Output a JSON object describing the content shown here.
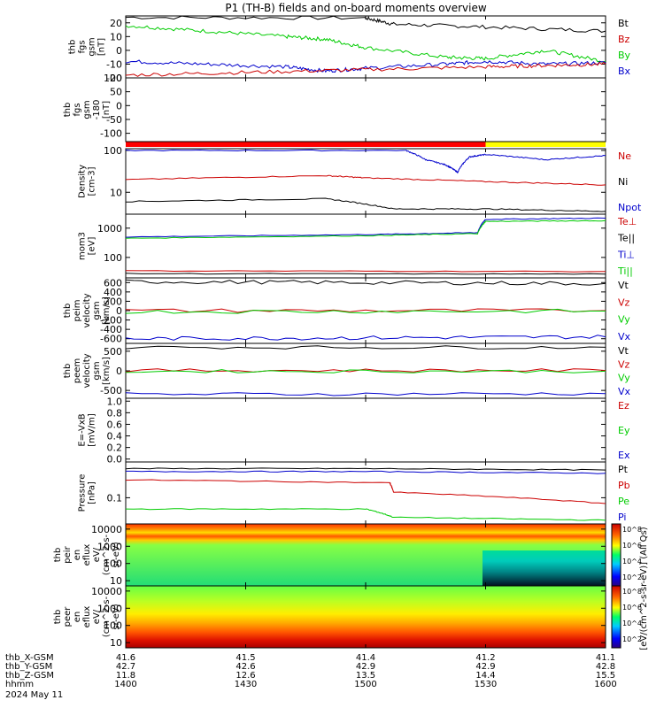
{
  "title": "P1 (TH-B) fields and on-board moments overview",
  "panels": [
    {
      "id": "fgs",
      "ylabel": [
        "thb",
        "fgs",
        "gsm",
        "[nT]"
      ],
      "ticks": [
        20,
        10,
        0,
        -10,
        -20
      ],
      "ylim": [
        -20,
        25
      ],
      "legend": [
        {
          "label": "Bt",
          "color": "#000000"
        },
        {
          "label": "Bz",
          "color": "#cc0000"
        },
        {
          "label": "By",
          "color": "#00cc00"
        },
        {
          "label": "Bx",
          "color": "#0000cc"
        }
      ]
    },
    {
      "id": "fgs_sun",
      "ylabel": [
        "thb",
        "fgs",
        "gsm",
        "-180",
        "[nT]"
      ],
      "ticks": [
        100,
        50,
        0,
        -50,
        -100
      ],
      "ylim": [
        -130,
        100
      ],
      "legend": []
    },
    {
      "id": "density",
      "ylabel": [
        "Density",
        "[cm-3]"
      ],
      "ticks": [
        "100",
        "10"
      ],
      "scale": "log",
      "ylim": [
        3,
        110
      ],
      "legend": [
        {
          "label": "Ne",
          "color": "#cc0000"
        },
        {
          "label": "Ni",
          "color": "#000000"
        },
        {
          "label": "Npot",
          "color": "#0000cc"
        }
      ]
    },
    {
      "id": "temp",
      "ylabel": [
        "mom3",
        "[eV]"
      ],
      "ticks": [
        "1000",
        "100"
      ],
      "scale": "log",
      "ylim": [
        20,
        3000
      ],
      "legend": [
        {
          "label": "Te⊥",
          "color": "#cc0000"
        },
        {
          "label": "Te||",
          "color": "#000000"
        },
        {
          "label": "Ti⊥",
          "color": "#0000cc"
        },
        {
          "label": "Ti||",
          "color": "#00cc00"
        }
      ]
    },
    {
      "id": "peim",
      "ylabel": [
        "thb",
        "peim",
        "velocity",
        "gsm",
        "[km/s]"
      ],
      "ticks": [
        600,
        400,
        200,
        0,
        -200,
        -400,
        -600
      ],
      "ylim": [
        -700,
        700
      ],
      "legend": [
        {
          "label": "Vt",
          "color": "#000000"
        },
        {
          "label": "Vz",
          "color": "#cc0000"
        },
        {
          "label": "Vy",
          "color": "#00cc00"
        },
        {
          "label": "Vx",
          "color": "#0000cc"
        }
      ]
    },
    {
      "id": "peem",
      "ylabel": [
        "thb",
        "peem",
        "velocity",
        "gsm",
        "[km/s]"
      ],
      "ticks": [
        500,
        0,
        -500
      ],
      "ylim": [
        -700,
        700
      ],
      "legend": [
        {
          "label": "Vt",
          "color": "#000000"
        },
        {
          "label": "Vz",
          "color": "#cc0000"
        },
        {
          "label": "Vy",
          "color": "#00cc00"
        },
        {
          "label": "Vx",
          "color": "#0000cc"
        }
      ]
    },
    {
      "id": "efield",
      "ylabel": [
        "E=-VxB",
        "[mV/m]"
      ],
      "ticks": [
        "1.0",
        "0.8",
        "0.6",
        "0.4",
        "0.2",
        "0.0"
      ],
      "ylim": [
        -0.05,
        1.05
      ],
      "legend": [
        {
          "label": "Ez",
          "color": "#cc0000"
        },
        {
          "label": "Ey",
          "color": "#00cc00"
        },
        {
          "label": "Ex",
          "color": "#0000cc"
        }
      ]
    },
    {
      "id": "pressure",
      "ylabel": [
        "Pressure",
        "[nPa]"
      ],
      "ticks": [
        "0.1"
      ],
      "scale": "log",
      "ylim": [
        0.02,
        0.9
      ],
      "legend": [
        {
          "label": "Pt",
          "color": "#000000"
        },
        {
          "label": "Pb",
          "color": "#cc0000"
        },
        {
          "label": "Pe",
          "color": "#00cc00"
        },
        {
          "label": "Pi",
          "color": "#0000cc"
        }
      ]
    },
    {
      "id": "peir",
      "ylabel": [
        "thb",
        "peir",
        "en",
        "eflux",
        "eV/",
        "(cm^2-s-",
        "sr-eV)"
      ],
      "ticks": [
        "10000",
        "1000",
        "100",
        "10"
      ],
      "scale": "log",
      "ylim": [
        5,
        20000
      ],
      "legend": []
    },
    {
      "id": "peer",
      "ylabel": [
        "thb",
        "peer",
        "en",
        "eflux",
        "eV/",
        "(cm^2-s-",
        "sr-eV)"
      ],
      "ticks": [
        "10000",
        "1000",
        "100",
        "10"
      ],
      "scale": "log",
      "ylim": [
        5,
        20000
      ],
      "legend": []
    }
  ],
  "colorbar": {
    "label": "[eV/(cm^2-s-sr-eV)] (All Qs)",
    "ticks_upper": [
      "10^8",
      "10^6",
      "10^4",
      "10^2"
    ],
    "ticks_lower": [
      "10^8",
      "10^6",
      "10^4",
      "10^2"
    ]
  },
  "xaxis": {
    "rows": [
      {
        "label": "thb_X-GSM",
        "values": [
          "41.6",
          "41.5",
          "41.4",
          "41.2",
          "41.1"
        ]
      },
      {
        "label": "thb_Y-GSM",
        "values": [
          "42.7",
          "42.6",
          "42.9",
          "42.9",
          "42.8"
        ]
      },
      {
        "label": "thb_Z-GSM",
        "values": [
          "11.8",
          "12.6",
          "13.5",
          "14.4",
          "15.5"
        ]
      },
      {
        "label": "hhmm",
        "values": [
          "1400",
          "1430",
          "1500",
          "1530",
          "1600"
        ]
      }
    ],
    "date": "2024 May 11"
  },
  "chart_data": {
    "type": "line",
    "x_hhmm": [
      "1400",
      "1430",
      "1500",
      "1530",
      "1600"
    ],
    "mode_bar": [
      {
        "from": "1400",
        "to": "1530",
        "color": "#ff0000"
      },
      {
        "from": "1530",
        "to": "1600",
        "color": "#ffff00"
      }
    ],
    "series": [
      {
        "panel": "fgs",
        "name": "Bt",
        "color": "#000000",
        "x": [
          1400,
          1500,
          1507,
          1530,
          1600
        ],
        "y": [
          24,
          23.5,
          19,
          17,
          14
        ]
      },
      {
        "panel": "fgs",
        "name": "By",
        "color": "#00cc00",
        "x": [
          1400,
          1420,
          1440,
          1450,
          1500,
          1520,
          1530,
          1545,
          1600
        ],
        "y": [
          18,
          14,
          10,
          8,
          2,
          -5,
          -6,
          0,
          -8
        ]
      },
      {
        "panel": "fgs",
        "name": "Bx",
        "color": "#0000cc",
        "x": [
          1400,
          1420,
          1440,
          1450,
          1500,
          1520,
          1530,
          1545,
          1600
        ],
        "y": [
          -8,
          -10,
          -12,
          -15,
          -13,
          -10,
          -8,
          -10,
          -9
        ]
      },
      {
        "panel": "fgs",
        "name": "Bz",
        "color": "#cc0000",
        "x": [
          1400,
          1430,
          1500,
          1530,
          1545,
          1600
        ],
        "y": [
          -18,
          -16,
          -14,
          -12,
          -11,
          -10
        ]
      },
      {
        "panel": "density",
        "name": "Npot",
        "color": "#0000cc",
        "x": [
          1400,
          1510,
          1515,
          1520,
          1523,
          1526,
          1530,
          1545,
          1600
        ],
        "y": [
          100,
          100,
          60,
          45,
          30,
          70,
          80,
          60,
          75
        ]
      },
      {
        "panel": "density",
        "name": "Ne",
        "color": "#cc0000",
        "x": [
          1400,
          1450,
          1500,
          1530,
          1600
        ],
        "y": [
          20,
          25,
          22,
          18,
          15
        ]
      },
      {
        "panel": "density",
        "name": "Ni",
        "color": "#000000",
        "x": [
          1400,
          1450,
          1507,
          1530,
          1600
        ],
        "y": [
          6,
          7,
          4,
          4,
          3.5
        ]
      },
      {
        "panel": "temp",
        "name": "Ti⊥",
        "color": "#0000cc",
        "x": [
          1400,
          1500,
          1528,
          1530,
          1600
        ],
        "y": [
          500,
          600,
          700,
          2000,
          2200
        ]
      },
      {
        "panel": "temp",
        "name": "Ti||",
        "color": "#00cc00",
        "x": [
          1400,
          1500,
          1528,
          1530,
          1600
        ],
        "y": [
          450,
          550,
          650,
          1700,
          1800
        ]
      },
      {
        "panel": "temp",
        "name": "Te⊥",
        "color": "#cc0000",
        "x": [
          1400,
          1600
        ],
        "y": [
          35,
          33
        ]
      },
      {
        "panel": "temp",
        "name": "Te||",
        "color": "#000000",
        "x": [
          1400,
          1600
        ],
        "y": [
          28,
          27
        ]
      },
      {
        "panel": "peim",
        "name": "Vt",
        "color": "#000000",
        "x": [
          1400,
          1500,
          1600
        ],
        "y": [
          620,
          600,
          580
        ]
      },
      {
        "panel": "peim",
        "name": "Vz",
        "color": "#cc0000",
        "x": [
          1400,
          1600
        ],
        "y": [
          0,
          0
        ]
      },
      {
        "panel": "peim",
        "name": "Vy",
        "color": "#00cc00",
        "x": [
          1400,
          1600
        ],
        "y": [
          -20,
          -10
        ]
      },
      {
        "panel": "peim",
        "name": "Vx",
        "color": "#0000cc",
        "x": [
          1400,
          1500,
          1600
        ],
        "y": [
          -600,
          -580,
          -560
        ]
      },
      {
        "panel": "peem",
        "name": "Vt",
        "color": "#000000",
        "x": [
          1400,
          1600
        ],
        "y": [
          600,
          600
        ]
      },
      {
        "panel": "peem",
        "name": "Vz",
        "color": "#cc0000",
        "x": [
          1400,
          1600
        ],
        "y": [
          10,
          10
        ]
      },
      {
        "panel": "peem",
        "name": "Vy",
        "color": "#00cc00",
        "x": [
          1400,
          1600
        ],
        "y": [
          -10,
          -10
        ]
      },
      {
        "panel": "peem",
        "name": "Vx",
        "color": "#0000cc",
        "x": [
          1400,
          1600
        ],
        "y": [
          -600,
          -580
        ]
      },
      {
        "panel": "pressure",
        "name": "Pt",
        "color": "#000000",
        "x": [
          1400,
          1500,
          1600
        ],
        "y": [
          0.6,
          0.6,
          0.55
        ]
      },
      {
        "panel": "pressure",
        "name": "Pi",
        "color": "#0000cc",
        "x": [
          1400,
          1500,
          1600
        ],
        "y": [
          0.5,
          0.5,
          0.45
        ]
      },
      {
        "panel": "pressure",
        "name": "Pb",
        "color": "#cc0000",
        "x": [
          1400,
          1506,
          1507,
          1600
        ],
        "y": [
          0.3,
          0.25,
          0.14,
          0.07
        ]
      },
      {
        "panel": "pressure",
        "name": "Pe",
        "color": "#00cc00",
        "x": [
          1400,
          1500,
          1507,
          1600
        ],
        "y": [
          0.05,
          0.05,
          0.03,
          0.025
        ]
      }
    ]
  }
}
